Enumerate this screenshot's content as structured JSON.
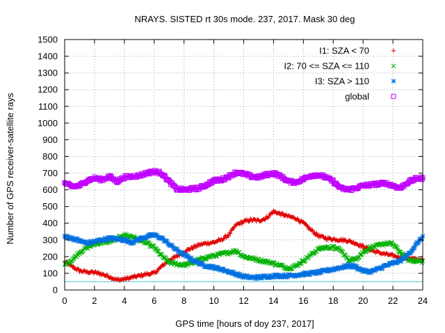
{
  "chart_data": {
    "type": "scatter",
    "title": "NRAYS. SISTED rt 30s mode. 237, 2017. Mask 30 deg",
    "xlabel": "GPS time [hours of doy 237, 2017]",
    "ylabel": "Number of GPS receiver-satellite rays",
    "xlim": [
      0,
      24
    ],
    "ylim": [
      0,
      1500
    ],
    "xticks": [
      "0",
      "2",
      "4",
      "6",
      "8",
      "10",
      "12",
      "14",
      "16",
      "18",
      "20",
      "22",
      "24"
    ],
    "yticks": [
      "0",
      "100",
      "200",
      "300",
      "400",
      "500",
      "600",
      "700",
      "800",
      "900",
      "1000",
      "1100",
      "1200",
      "1300",
      "1400",
      "1500"
    ],
    "grid": true,
    "legend_position": "top-right",
    "threshold_line": {
      "value": 50,
      "color": "#40c0c0"
    },
    "series": [
      {
        "name": "I1: SZA < 70",
        "color": "#e00000",
        "marker": "+",
        "x": [
          0,
          0.5,
          1,
          1.5,
          2,
          2.5,
          3,
          3.5,
          4,
          4.5,
          5,
          5.5,
          6,
          6.5,
          7,
          7.5,
          8,
          8.5,
          9,
          9.5,
          10,
          10.5,
          11,
          11.5,
          12,
          12.5,
          13,
          13.5,
          14,
          14.5,
          15,
          15.5,
          16,
          16.5,
          17,
          17.5,
          18,
          18.5,
          19,
          19.5,
          20,
          20.5,
          21,
          21.5,
          22,
          22.5,
          23,
          23.5,
          24
        ],
        "y": [
          170,
          140,
          115,
          108,
          105,
          95,
          80,
          60,
          65,
          75,
          85,
          95,
          100,
          140,
          180,
          200,
          230,
          250,
          270,
          280,
          285,
          300,
          330,
          390,
          410,
          420,
          415,
          430,
          470,
          455,
          440,
          430,
          400,
          360,
          325,
          310,
          305,
          300,
          295,
          280,
          260,
          240,
          225,
          215,
          205,
          195,
          190,
          185,
          180
        ]
      },
      {
        "name": "I2: 70 <= SZA <= 110",
        "color": "#00b000",
        "marker": "x",
        "x": [
          0,
          0.5,
          1,
          1.5,
          2,
          2.5,
          3,
          3.5,
          4,
          4.5,
          5,
          5.5,
          6,
          6.5,
          7,
          7.5,
          8,
          8.5,
          9,
          9.5,
          10,
          10.5,
          11,
          11.5,
          12,
          12.5,
          13,
          13.5,
          14,
          14.5,
          15,
          15.5,
          16,
          16.5,
          17,
          17.5,
          18,
          18.5,
          19,
          19.5,
          20,
          20.5,
          21,
          21.5,
          22,
          22.5,
          23,
          23.5,
          24
        ],
        "y": [
          150,
          180,
          225,
          255,
          275,
          285,
          290,
          305,
          330,
          320,
          300,
          280,
          255,
          205,
          165,
          155,
          150,
          160,
          180,
          195,
          205,
          215,
          225,
          235,
          200,
          190,
          180,
          170,
          160,
          145,
          130,
          145,
          175,
          210,
          245,
          255,
          255,
          240,
          180,
          185,
          225,
          255,
          265,
          280,
          275,
          225,
          180,
          175,
          170
        ]
      },
      {
        "name": "I3: SZA > 110",
        "color": "#0070e0",
        "marker": "*",
        "x": [
          0,
          0.5,
          1,
          1.5,
          2,
          2.5,
          3,
          3.5,
          4,
          4.5,
          5,
          5.5,
          6,
          6.5,
          7,
          7.5,
          8,
          8.5,
          9,
          9.5,
          10,
          10.5,
          11,
          11.5,
          12,
          12.5,
          13,
          13.5,
          14,
          14.5,
          15,
          15.5,
          16,
          16.5,
          17,
          17.5,
          18,
          18.5,
          19,
          19.5,
          20,
          20.5,
          21,
          21.5,
          22,
          22.5,
          23,
          23.5,
          24
        ],
        "y": [
          320,
          310,
          295,
          280,
          290,
          300,
          310,
          305,
          300,
          285,
          305,
          320,
          330,
          310,
          275,
          240,
          210,
          185,
          160,
          145,
          135,
          125,
          110,
          95,
          80,
          75,
          75,
          80,
          85,
          85,
          85,
          90,
          95,
          100,
          105,
          115,
          125,
          135,
          145,
          140,
          115,
          110,
          125,
          145,
          160,
          175,
          210,
          265,
          320
        ]
      },
      {
        "name": "global",
        "color": "#c000ff",
        "marker": "square",
        "x": [
          0,
          0.5,
          1,
          1.5,
          2,
          2.5,
          3,
          3.5,
          4,
          4.5,
          5,
          5.5,
          6,
          6.5,
          7,
          7.5,
          8,
          8.5,
          9,
          9.5,
          10,
          10.5,
          11,
          11.5,
          12,
          12.5,
          13,
          13.5,
          14,
          14.5,
          15,
          15.5,
          16,
          16.5,
          17,
          17.5,
          18,
          18.5,
          19,
          19.5,
          20,
          20.5,
          21,
          21.5,
          22,
          22.5,
          23,
          23.5,
          24
        ],
        "y": [
          640,
          620,
          625,
          655,
          670,
          660,
          680,
          650,
          675,
          680,
          685,
          700,
          710,
          700,
          650,
          605,
          600,
          605,
          610,
          630,
          655,
          660,
          680,
          705,
          695,
          680,
          675,
          690,
          700,
          680,
          650,
          645,
          665,
          685,
          690,
          675,
          650,
          610,
          600,
          610,
          625,
          630,
          635,
          640,
          625,
          610,
          645,
          665,
          670
        ]
      }
    ]
  }
}
